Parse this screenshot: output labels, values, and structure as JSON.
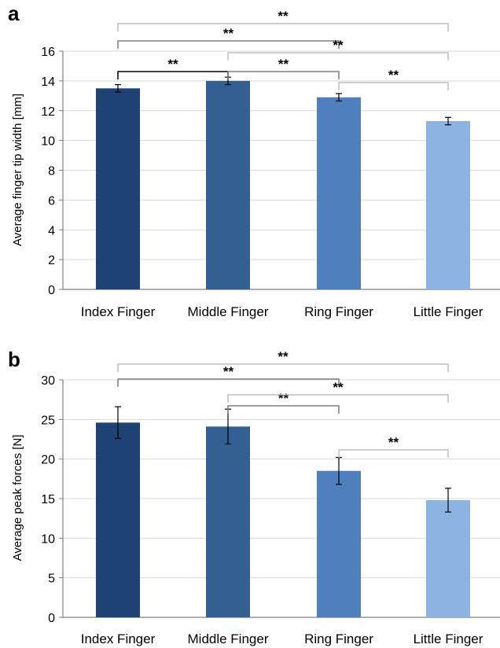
{
  "chart_data": [
    {
      "panel_label": "a",
      "type": "bar",
      "categories": [
        "Index Finger",
        "Middle Finger",
        "Ring Finger",
        "Little Finger"
      ],
      "values": [
        13.5,
        14.0,
        12.9,
        11.3
      ],
      "errors": [
        0.25,
        0.25,
        0.25,
        0.25
      ],
      "ylabel": "Average finger tip width [mm]",
      "ylim": [
        0,
        16
      ],
      "yticks": [
        0,
        2,
        4,
        6,
        8,
        10,
        12,
        14,
        16
      ],
      "grid": true,
      "bar_colors": [
        "#1f4274",
        "#345f92",
        "#4f7fbc",
        "#8cb3e2"
      ],
      "significance": [
        {
          "from": 0,
          "to": 1,
          "label": "**",
          "color": "#000000"
        },
        {
          "from": 1,
          "to": 2,
          "label": "**",
          "color": "#7f7f7f"
        },
        {
          "from": 2,
          "to": 3,
          "label": "**",
          "color": "#bfbfbf"
        },
        {
          "from": 0,
          "to": 2,
          "label": "**",
          "color": "#7f7f7f"
        },
        {
          "from": 1,
          "to": 3,
          "label": "**",
          "color": "#bfbfbf"
        },
        {
          "from": 0,
          "to": 3,
          "label": "**",
          "color": "#bfbfbf"
        }
      ]
    },
    {
      "panel_label": "b",
      "type": "bar",
      "categories": [
        "Index Finger",
        "Middle Finger",
        "Ring Finger",
        "Little Finger"
      ],
      "values": [
        24.6,
        24.1,
        18.5,
        14.8
      ],
      "errors": [
        2.0,
        2.2,
        1.7,
        1.5
      ],
      "ylabel": "Average peak forces [N]",
      "ylim": [
        0,
        30
      ],
      "yticks": [
        0,
        5,
        10,
        15,
        20,
        25,
        30
      ],
      "grid": true,
      "bar_colors": [
        "#1f4274",
        "#345f92",
        "#4f7fbc",
        "#8cb3e2"
      ],
      "significance": [
        {
          "from": 1,
          "to": 2,
          "label": "**",
          "color": "#7f7f7f"
        },
        {
          "from": 2,
          "to": 3,
          "label": "**",
          "color": "#bfbfbf"
        },
        {
          "from": 0,
          "to": 2,
          "label": "**",
          "color": "#7f7f7f"
        },
        {
          "from": 1,
          "to": 3,
          "label": "**",
          "color": "#bfbfbf"
        },
        {
          "from": 0,
          "to": 3,
          "label": "**",
          "color": "#bfbfbf"
        }
      ]
    }
  ]
}
